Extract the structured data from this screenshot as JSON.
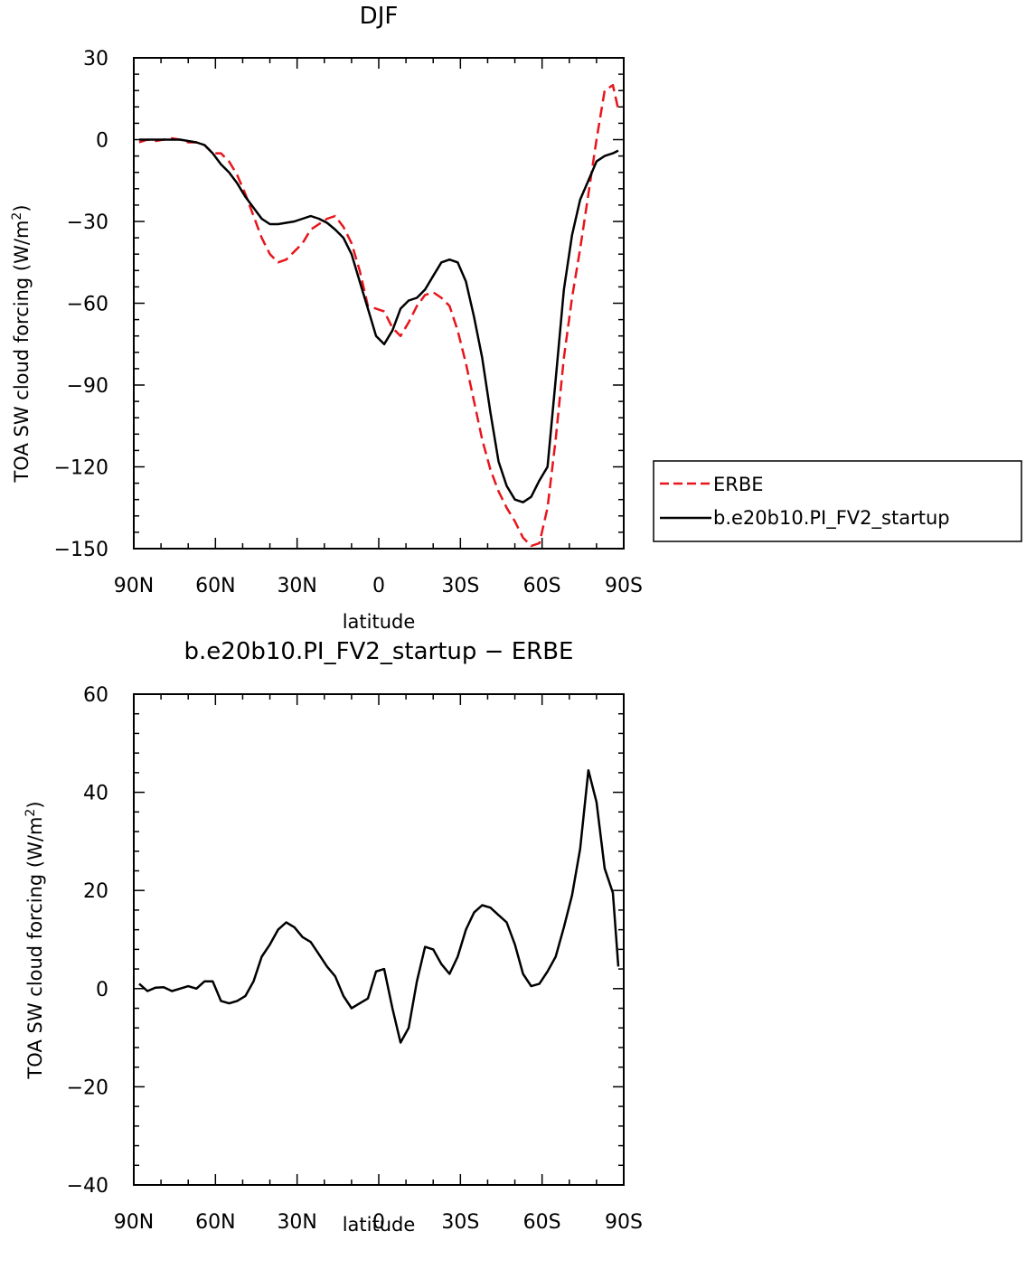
{
  "chart_data": [
    {
      "type": "line",
      "title": "DJF",
      "xlabel": "latitude",
      "ylabel": "TOA SW cloud forcing (W/m²)",
      "ylabel_main": "TOA SW cloud forcing (W/m",
      "ylabel_sup": "2",
      "ylabel_end": ")",
      "xlim": [
        90,
        -90
      ],
      "ylim": [
        -150,
        30
      ],
      "x_ticks": [
        90,
        60,
        30,
        0,
        -30,
        -60,
        -90
      ],
      "x_tick_labels": [
        "90N",
        "60N",
        "30N",
        "0",
        "30S",
        "60S",
        "90S"
      ],
      "y_ticks": [
        30,
        0,
        -30,
        -60,
        -90,
        -120,
        -150
      ],
      "y_tick_labels": [
        "30",
        "0",
        "−30",
        "−60",
        "−90",
        "−120",
        "−150"
      ],
      "legend": "right",
      "series": [
        {
          "name": "ERBE",
          "color": "#e8141b",
          "dash": "dashed",
          "x": [
            88,
            85,
            82,
            79,
            76,
            73,
            70,
            67,
            64,
            61,
            58,
            55,
            52,
            49,
            46,
            43,
            40,
            37,
            34,
            31,
            28,
            25,
            22,
            19,
            16,
            13,
            10,
            7,
            4,
            1,
            -2,
            -5,
            -8,
            -11,
            -14,
            -17,
            -20,
            -23,
            -26,
            -29,
            -32,
            -35,
            -38,
            -41,
            -44,
            -47,
            -50,
            -53,
            -56,
            -59,
            -62,
            -65,
            -68,
            -71,
            -74,
            -77,
            -80,
            -83,
            -86,
            -88
          ],
          "y": [
            -1,
            0,
            -0.5,
            0,
            0.5,
            0,
            -1,
            -1,
            -2,
            -5,
            -5,
            -8,
            -13,
            -20,
            -28,
            -36,
            -42,
            -45,
            -44,
            -41,
            -38,
            -33,
            -31,
            -29,
            -28,
            -32,
            -38,
            -48,
            -61,
            -62,
            -63,
            -69,
            -72,
            -67,
            -61,
            -57,
            -56,
            -58,
            -61,
            -70,
            -82,
            -96,
            -110,
            -121,
            -129,
            -135,
            -140,
            -146,
            -149,
            -148,
            -135,
            -110,
            -80,
            -58,
            -40,
            -20,
            0,
            18,
            20,
            11
          ]
        },
        {
          "name": "b.e20b10.PI_FV2_startup",
          "color": "#000000",
          "dash": "solid",
          "x": [
            88,
            85,
            82,
            79,
            76,
            73,
            70,
            67,
            64,
            61,
            58,
            55,
            52,
            49,
            46,
            43,
            40,
            37,
            34,
            31,
            28,
            25,
            22,
            19,
            16,
            13,
            10,
            7,
            4,
            1,
            -2,
            -5,
            -8,
            -11,
            -14,
            -17,
            -20,
            -23,
            -26,
            -29,
            -32,
            -35,
            -38,
            -41,
            -44,
            -47,
            -50,
            -53,
            -56,
            -59,
            -62,
            -65,
            -68,
            -71,
            -74,
            -77,
            -80,
            -83,
            -86,
            -88
          ],
          "y": [
            0,
            0,
            0,
            0,
            0,
            0,
            -0.5,
            -1,
            -2,
            -5,
            -9,
            -12,
            -16,
            -21,
            -25,
            -29,
            -31,
            -31,
            -30.5,
            -30,
            -29,
            -28,
            -29,
            -30.5,
            -33,
            -36,
            -42,
            -52,
            -62,
            -72,
            -75,
            -70,
            -62,
            -59,
            -58,
            -55,
            -50,
            -45,
            -44,
            -45,
            -52,
            -65,
            -80,
            -100,
            -118,
            -127,
            -132,
            -133,
            -131,
            -125,
            -120,
            -88,
            -55,
            -35,
            -22,
            -15,
            -8,
            -6,
            -5,
            -4
          ]
        }
      ]
    },
    {
      "type": "line",
      "title": "b.e20b10.PI_FV2_startup − ERBE",
      "xlabel": "latitude",
      "ylabel": "TOA SW cloud forcing (W/m²)",
      "ylabel_main": "TOA SW cloud forcing (W/m",
      "ylabel_sup": "2",
      "ylabel_end": ")",
      "xlim": [
        90,
        -90
      ],
      "ylim": [
        -40,
        60
      ],
      "x_ticks": [
        90,
        60,
        30,
        0,
        -30,
        -60,
        -90
      ],
      "x_tick_labels": [
        "90N",
        "60N",
        "30N",
        "0",
        "30S",
        "60S",
        "90S"
      ],
      "y_ticks": [
        60,
        40,
        20,
        0,
        -20,
        -40
      ],
      "y_tick_labels": [
        "60",
        "40",
        "20",
        "0",
        "−20",
        "−40"
      ],
      "series": [
        {
          "color": "#000000",
          "dash": "solid",
          "x": [
            88,
            85,
            82,
            79,
            76,
            73,
            70,
            67,
            64,
            61,
            58,
            55,
            52,
            49,
            46,
            43,
            40,
            37,
            34,
            31,
            28,
            25,
            22,
            19,
            16,
            13,
            10,
            7,
            4,
            1,
            -2,
            -5,
            -8,
            -11,
            -14,
            -17,
            -20,
            -23,
            -26,
            -29,
            -32,
            -35,
            -38,
            -41,
            -44,
            -47,
            -50,
            -53,
            -56,
            -59,
            -62,
            -65,
            -68,
            -71,
            -74,
            -77,
            -80,
            -83,
            -86,
            -88
          ],
          "y": [
            1,
            -0.5,
            0.2,
            0.3,
            -0.5,
            0,
            0.5,
            0,
            1.5,
            1.5,
            -2.5,
            -3,
            -2.5,
            -1.5,
            1.5,
            6.5,
            9,
            12,
            13.5,
            12.5,
            10.5,
            9.5,
            7,
            4.5,
            2.5,
            -1.5,
            -4,
            -3,
            -2,
            3.5,
            4,
            -4,
            -11,
            -8,
            1.5,
            8.5,
            8,
            5,
            3,
            6.5,
            12,
            15.5,
            17,
            16.5,
            15,
            13.5,
            9,
            3,
            0.5,
            1,
            3.5,
            6.5,
            12.5,
            19,
            28.5,
            44.5,
            38,
            24.5,
            19.5,
            4.5
          ]
        }
      ]
    }
  ]
}
